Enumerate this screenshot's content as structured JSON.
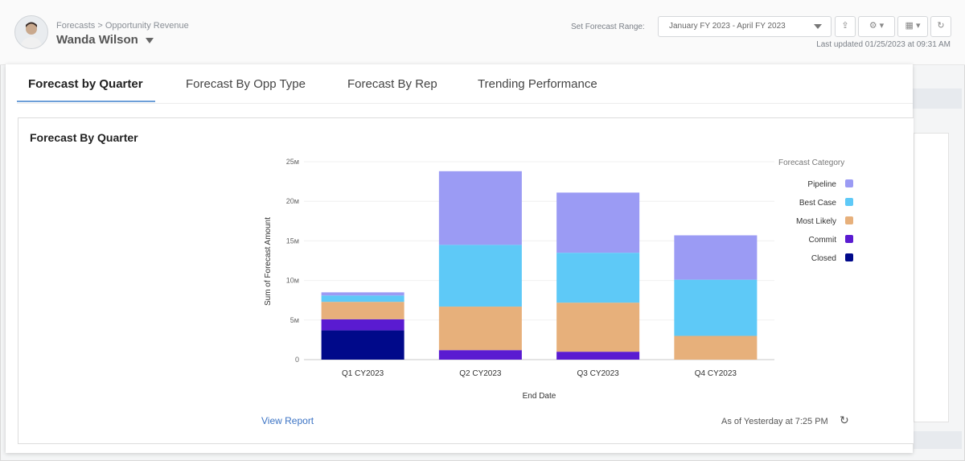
{
  "header": {
    "breadcrumb": "Forecasts > Opportunity Revenue",
    "user_name": "Wanda Wilson",
    "range_label": "Set Forecast Range:",
    "range_value": "January FY 2023 - April FY 2023",
    "last_updated": "Last updated 01/25/2023 at 09:31 AM",
    "icons": [
      "avatar",
      "export-icon",
      "gear-icon",
      "table-icon",
      "refresh-icon"
    ]
  },
  "tabs": [
    {
      "label": "Forecast by Quarter",
      "active": true
    },
    {
      "label": "Forecast By Opp Type",
      "active": false
    },
    {
      "label": "Forecast By Rep",
      "active": false
    },
    {
      "label": "Trending Performance",
      "active": false
    }
  ],
  "card": {
    "title": "Forecast By Quarter",
    "view_report": "View Report",
    "as_of": "As of Yesterday at 7:25 PM"
  },
  "chart_data": {
    "type": "bar",
    "stacked": true,
    "xlabel": "End Date",
    "ylabel": "Sum of Forecast Amount",
    "ylim": [
      0,
      25
    ],
    "yticks": [
      0,
      5,
      10,
      15,
      20,
      25
    ],
    "ytick_labels": [
      "0",
      "5м",
      "10м",
      "15м",
      "20м",
      "25м"
    ],
    "legend_title": "Forecast Category",
    "legend_position": "right",
    "categories": [
      "Q1 CY2023",
      "Q2 CY2023",
      "Q3 CY2023",
      "Q4 CY2023"
    ],
    "series": [
      {
        "name": "Closed",
        "color": "#00098a",
        "values": [
          3.7,
          0,
          0,
          0
        ]
      },
      {
        "name": "Commit",
        "color": "#5a1bd1",
        "values": [
          1.4,
          1.2,
          1.0,
          0
        ]
      },
      {
        "name": "Most Likely",
        "color": "#e7b07b",
        "values": [
          2.2,
          5.5,
          6.2,
          3.0
        ]
      },
      {
        "name": "Best Case",
        "color": "#5ec9f7",
        "values": [
          0.8,
          7.8,
          6.3,
          7.1
        ]
      },
      {
        "name": "Pipeline",
        "color": "#9b9bf4",
        "values": [
          0.4,
          9.3,
          7.6,
          5.6
        ]
      }
    ],
    "legend_order": [
      "Pipeline",
      "Best Case",
      "Most Likely",
      "Commit",
      "Closed"
    ]
  }
}
